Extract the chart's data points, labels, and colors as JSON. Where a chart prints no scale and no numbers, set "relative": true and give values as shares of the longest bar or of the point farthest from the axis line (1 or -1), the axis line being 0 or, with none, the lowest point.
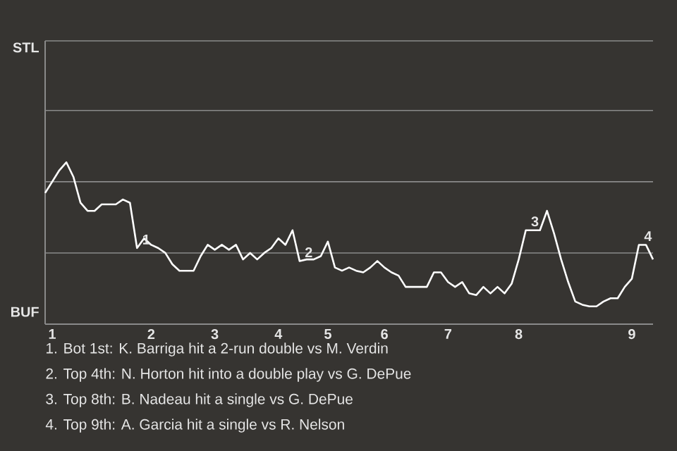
{
  "chart_data": {
    "type": "line",
    "color": "#ffffff",
    "line_style": "solid",
    "marker": "none",
    "relative": true,
    "ref_lines": [
      {
        "axis": "y",
        "value": 0.44,
        "color": "#8a8a8a"
      },
      {
        "axis": "y",
        "value": 0.88,
        "color": "#8a8a8a"
      },
      {
        "axis": "y",
        "value": 1.32,
        "color": "#8a8a8a"
      },
      {
        "axis": "y",
        "value": 1.75,
        "color": "#8a8a8a"
      }
    ],
    "categories": [
      null,
      "1",
      null,
      null,
      null,
      null,
      null,
      null,
      null,
      null,
      null,
      null,
      null,
      null,
      null,
      "2",
      null,
      null,
      null,
      null,
      null,
      null,
      null,
      null,
      "3",
      null,
      null,
      null,
      null,
      null,
      null,
      null,
      null,
      "4",
      null,
      null,
      null,
      null,
      null,
      null,
      "5",
      null,
      null,
      null,
      null,
      null,
      null,
      null,
      "6",
      null,
      null,
      null,
      null,
      null,
      null,
      null,
      null,
      "7",
      null,
      null,
      null,
      null,
      null,
      null,
      null,
      null,
      null,
      "8",
      null,
      null,
      null,
      null,
      null,
      null,
      null,
      null,
      null,
      null,
      null,
      null,
      null,
      null,
      null,
      "9",
      null,
      null,
      null
    ],
    "values": [
      0.81,
      0.88,
      0.95,
      1,
      0.91,
      0.75,
      0.7,
      0.7,
      0.74,
      0.74,
      0.74,
      0.77,
      0.75,
      0.47,
      0.53,
      0.49,
      0.47,
      0.44,
      0.37,
      0.33,
      0.33,
      0.33,
      0.42,
      0.49,
      0.46,
      0.49,
      0.46,
      0.49,
      0.4,
      0.44,
      0.4,
      0.44,
      0.47,
      0.53,
      0.49,
      0.58,
      0.39,
      0.4,
      0.4,
      0.42,
      0.51,
      0.35,
      0.33,
      0.35,
      0.33,
      0.32,
      0.35,
      0.39,
      0.35,
      0.32,
      0.3,
      0.23,
      0.23,
      0.23,
      0.23,
      0.32,
      0.32,
      0.26,
      0.23,
      0.26,
      0.19,
      0.18,
      0.23,
      0.19,
      0.23,
      0.19,
      0.25,
      0.4,
      0.58,
      0.58,
      0.58,
      0.7,
      0.56,
      0.4,
      0.26,
      0.14,
      0.12,
      0.11,
      0.11,
      0.14,
      0.16,
      0.16,
      0.23,
      0.28,
      0.49,
      0.49,
      0.4
    ],
    "annotations": [
      "STL",
      "BUF",
      {
        "text": "1",
        "y": 0.47
      },
      {
        "text": "2",
        "y": 0.39
      },
      {
        "text": "3",
        "y": 0.58
      },
      {
        "text": "4",
        "y": 0.49
      },
      "1. Bot 1st: K. Barriga hit a 2-run double vs M. Verdin",
      "2. Top 4th: N. Horton hit into a double play vs G. DePue",
      "3. Top 8th: B. Nadeau hit a single vs G. DePue",
      "4. Top 9th: A. Garcia hit a single vs R. Nelson"
    ]
  }
}
